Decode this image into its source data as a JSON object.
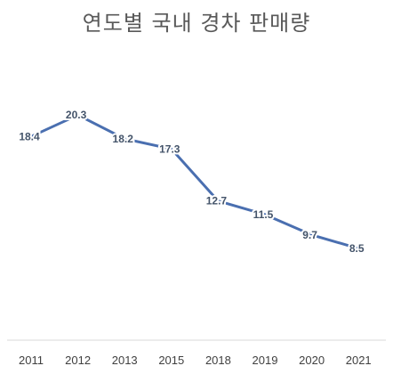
{
  "chart_data": {
    "type": "line",
    "title": "연도별 국내 경차 판매량",
    "categories": [
      "2011",
      "2012",
      "2013",
      "2015",
      "2018",
      "2019",
      "2020",
      "2021"
    ],
    "series": [
      {
        "values": [
          18.4,
          20.3,
          18.2,
          17.3,
          12.7,
          11.5,
          9.7,
          8.5
        ]
      }
    ],
    "data_labels": [
      "18.4",
      "20.3",
      "18.2",
      "17.3",
      "12.7",
      "11.5",
      "9.7",
      "8.5"
    ],
    "xlabel": "",
    "ylabel": "",
    "ylim": [
      0,
      22
    ],
    "grid": false,
    "legend": "none",
    "colors": {
      "line": "#4a6fb0",
      "label": "#44546a",
      "axis": "#d9d9d9",
      "title": "#595959"
    }
  }
}
